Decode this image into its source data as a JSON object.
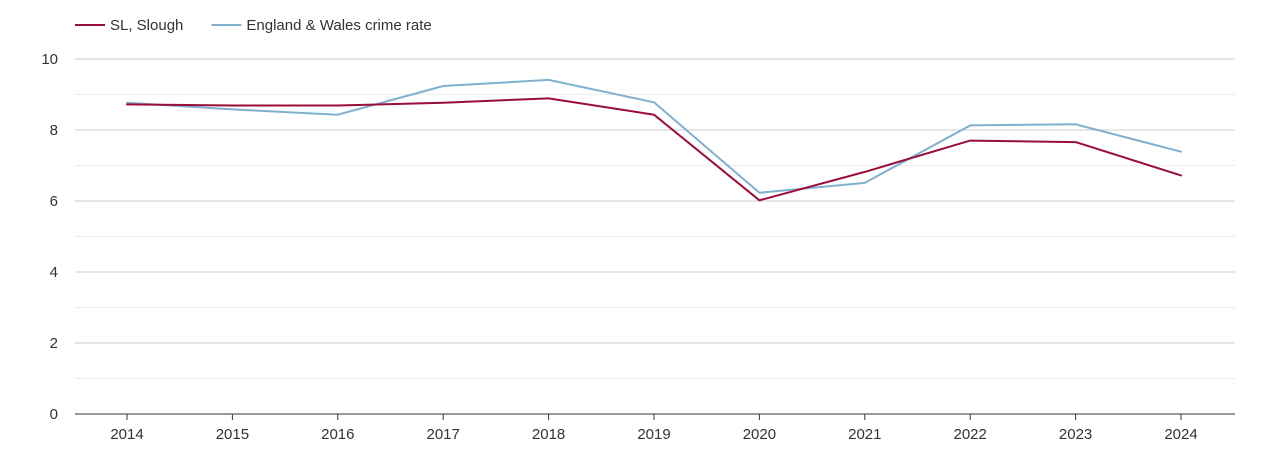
{
  "chart_data": {
    "type": "line",
    "title": "",
    "xlabel": "",
    "ylabel": "",
    "categories": [
      "2014",
      "2015",
      "2016",
      "2017",
      "2018",
      "2019",
      "2020",
      "2021",
      "2022",
      "2023",
      "2024"
    ],
    "ylim": [
      0,
      10
    ],
    "yticks": [
      "0",
      "2",
      "4",
      "6",
      "8",
      "10"
    ],
    "grid": true,
    "legend_position": "top-left",
    "series": [
      {
        "name": "SL, Slough",
        "color": "#9b0d3a",
        "values": [
          8.72,
          8.69,
          8.69,
          8.77,
          8.89,
          8.43,
          6.02,
          6.82,
          7.7,
          7.66,
          6.72
        ]
      },
      {
        "name": "England & Wales crime rate",
        "color": "#7fb0cf",
        "values": [
          8.77,
          8.58,
          8.43,
          9.24,
          9.41,
          8.78,
          6.23,
          6.51,
          8.13,
          8.16,
          7.39
        ]
      }
    ]
  }
}
